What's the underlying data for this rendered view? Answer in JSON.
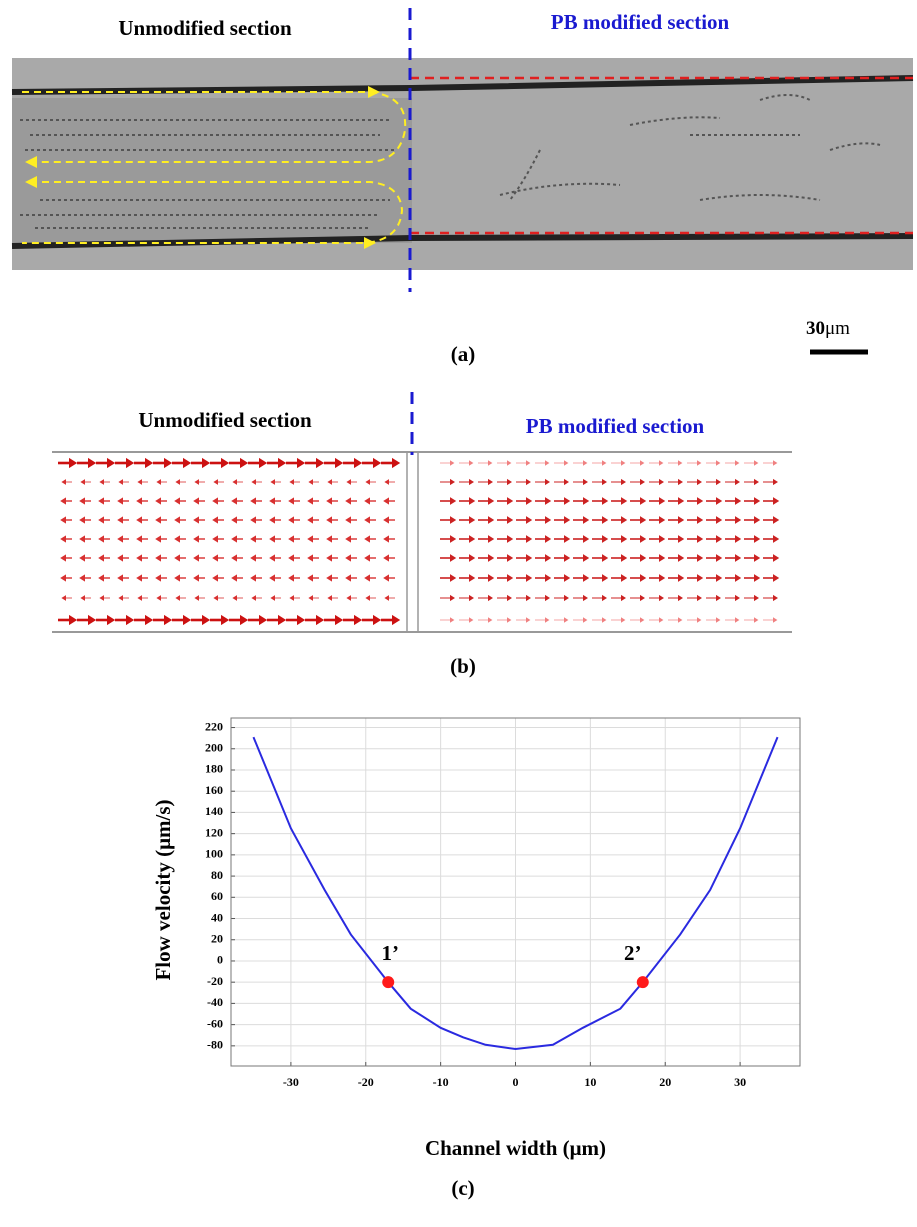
{
  "panel_a": {
    "left_label": "Unmodified section",
    "right_label": "PB modified section",
    "scale_value": "30",
    "scale_unit": "μm",
    "caption": "(a)"
  },
  "panel_b": {
    "left_label": "Unmodified section",
    "right_label": "PB modified section",
    "caption": "(b)"
  },
  "chart_data": {
    "type": "line",
    "caption": "(c)",
    "xlabel": "Channel width (μm)",
    "ylabel": "Flow velocity (μm/s)",
    "x": [
      -35,
      -30,
      -25.5,
      -22,
      -17,
      -14,
      -10,
      -7,
      -4,
      0,
      5,
      9,
      14,
      17,
      22,
      26,
      30,
      35
    ],
    "series": [
      {
        "color": "#2a2ae0",
        "values": [
          211,
          125,
          67,
          25,
          -20,
          -45,
          -63,
          -72,
          -79,
          -83,
          -79,
          -63,
          -45,
          -20,
          25,
          67,
          125,
          211
        ]
      }
    ],
    "points": [
      {
        "label": "1’",
        "x": -17,
        "y": -20
      },
      {
        "label": "2’",
        "x": 17,
        "y": -20
      }
    ],
    "point_color": "#ff1a1a",
    "xlim": [
      -38,
      38
    ],
    "ylim": [
      -99,
      229
    ],
    "xticks": [
      -30,
      -20,
      -10,
      0,
      10,
      20,
      30
    ],
    "yticks": [
      220,
      200,
      180,
      160,
      140,
      120,
      100,
      80,
      60,
      40,
      20,
      0,
      -20,
      -40,
      -60,
      -80
    ],
    "grid": true
  }
}
